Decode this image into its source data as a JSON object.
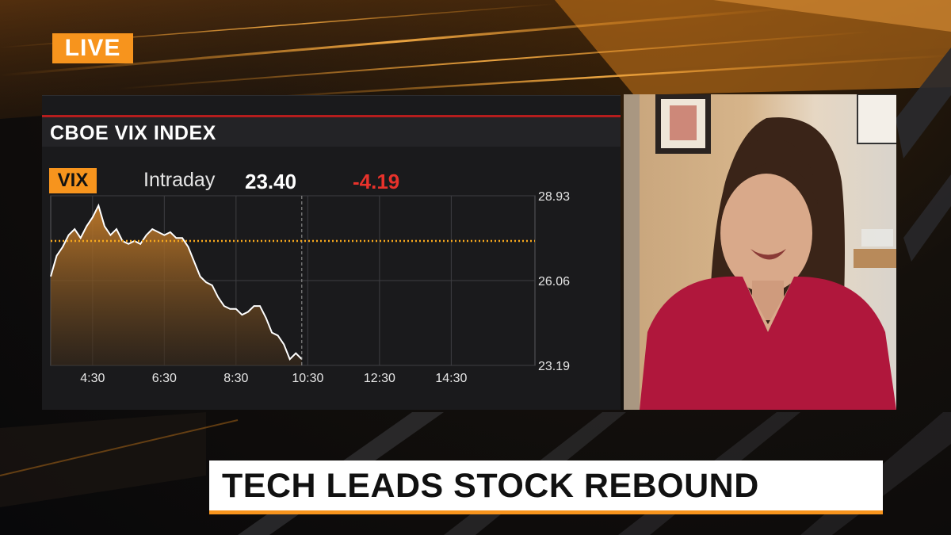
{
  "live_badge": "LIVE",
  "chart_panel": {
    "title": "CBOE VIX INDEX",
    "ticker": "VIX",
    "period": "Intraday",
    "last_value": "23.40",
    "change": "-4.19",
    "colors": {
      "accent": "#f7941d",
      "negative": "#e8322b",
      "title_rule": "#b51d1d"
    }
  },
  "chart_data": {
    "type": "area",
    "x_ticks": [
      "4:30",
      "6:30",
      "8:30",
      "10:30",
      "12:30",
      "14:30"
    ],
    "y_ticks": [
      "28.93",
      "26.06",
      "23.19"
    ],
    "ylim": [
      23.19,
      28.93
    ],
    "xlim": [
      "3:20",
      "16:50"
    ],
    "reference_level": 27.4,
    "reference_style": "dotted-orange",
    "grid": true,
    "series": [
      {
        "x": [
          "3:20",
          "3:30",
          "3:40",
          "3:50",
          "4:00",
          "4:10",
          "4:20",
          "4:30",
          "4:40",
          "4:50",
          "5:00",
          "5:10",
          "5:20",
          "5:30",
          "5:40",
          "5:50",
          "6:00",
          "6:10",
          "6:20",
          "6:30",
          "6:40",
          "6:50",
          "7:00",
          "7:10",
          "7:20",
          "7:30",
          "7:40",
          "7:50",
          "8:00",
          "8:10",
          "8:20",
          "8:30",
          "8:40",
          "8:50",
          "9:00",
          "9:10",
          "9:20",
          "9:30",
          "9:40",
          "9:50",
          "10:00",
          "10:10",
          "10:20"
        ],
        "values": [
          26.2,
          26.9,
          27.2,
          27.6,
          27.8,
          27.5,
          27.9,
          28.2,
          28.6,
          27.9,
          27.6,
          27.8,
          27.4,
          27.3,
          27.4,
          27.3,
          27.6,
          27.8,
          27.7,
          27.6,
          27.7,
          27.5,
          27.5,
          27.2,
          26.7,
          26.2,
          26.0,
          25.9,
          25.5,
          25.2,
          25.1,
          25.1,
          24.9,
          25.0,
          25.2,
          25.2,
          24.8,
          24.3,
          24.2,
          23.9,
          23.4,
          23.6,
          23.4
        ]
      }
    ]
  },
  "video_feed": {
    "description_icon": "guest-video-icon"
  },
  "lower_third": {
    "headline": "TECH LEADS STOCK REBOUND"
  }
}
